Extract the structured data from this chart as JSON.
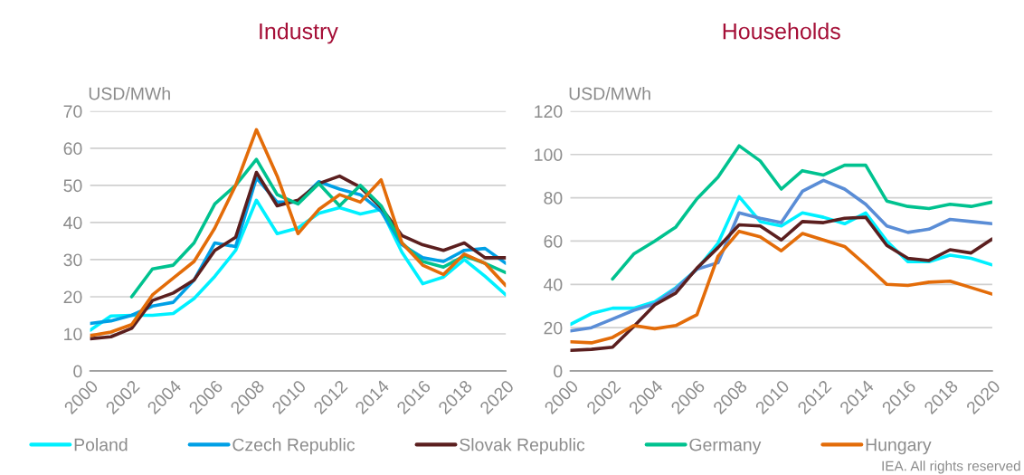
{
  "chart_data": [
    {
      "type": "line",
      "title": "Industry",
      "ylabel": "USD/MWh",
      "x": [
        2000,
        2001,
        2002,
        2003,
        2004,
        2005,
        2006,
        2007,
        2008,
        2009,
        2010,
        2011,
        2012,
        2013,
        2014,
        2015,
        2016,
        2017,
        2018,
        2019,
        2020
      ],
      "series": [
        {
          "name": "Poland",
          "color": "#00f0ff",
          "values": [
            11,
            14.8,
            15,
            15,
            15.5,
            19.5,
            25.5,
            32.5,
            46,
            37,
            38.5,
            42.5,
            44,
            42.3,
            43.5,
            32,
            23.5,
            25.3,
            30,
            25.5,
            20.5
          ]
        },
        {
          "name": "Czech Republic",
          "color": "#00a0e6",
          "values": [
            12.8,
            13.5,
            15,
            17.5,
            18.5,
            24.5,
            34.5,
            33.5,
            52,
            45.5,
            45.5,
            51,
            49,
            47.5,
            43,
            34,
            30.5,
            29.5,
            32.5,
            33,
            29
          ]
        },
        {
          "name": "Slovak Republic",
          "color": "#5b1f1f",
          "values": [
            8.7,
            9.2,
            11.5,
            19,
            21,
            24.5,
            32.5,
            36,
            53.5,
            44.5,
            46,
            50.5,
            52.5,
            49.5,
            44,
            36.5,
            34,
            32.5,
            34.5,
            30.5,
            30.5
          ]
        },
        {
          "name": "Germany",
          "color": "#00c28f",
          "values": [
            null,
            null,
            20,
            27.5,
            28.5,
            34.5,
            45,
            50,
            57,
            47.5,
            45,
            50.5,
            44.5,
            50,
            44.5,
            34.5,
            29.5,
            28,
            31,
            29,
            26.5
          ]
        },
        {
          "name": "Hungary",
          "color": "#e36c09",
          "values": [
            9.5,
            10.5,
            12.5,
            20.5,
            25,
            29.5,
            38.5,
            50,
            65,
            52.5,
            37,
            43.5,
            47.5,
            45.5,
            51.5,
            34.5,
            28.5,
            26,
            31.5,
            29,
            23
          ]
        }
      ],
      "xlim": [
        2000,
        2020
      ],
      "xticks": [
        2000,
        2002,
        2004,
        2006,
        2008,
        2010,
        2012,
        2014,
        2016,
        2018,
        2020
      ],
      "ylim": [
        0,
        70
      ],
      "yticks": [
        0,
        10,
        20,
        30,
        40,
        50,
        60,
        70
      ],
      "grid": "y",
      "legend": "bottom",
      "marker": "none",
      "line_style": "solid"
    },
    {
      "type": "line",
      "title": "Households",
      "ylabel": "USD/MWh",
      "x": [
        2000,
        2001,
        2002,
        2003,
        2004,
        2005,
        2006,
        2007,
        2008,
        2009,
        2010,
        2011,
        2012,
        2013,
        2014,
        2015,
        2016,
        2017,
        2018,
        2019,
        2020
      ],
      "series": [
        {
          "color": "#00f0ff",
          "values": [
            21.5,
            26.5,
            29,
            29,
            32,
            38.5,
            47,
            59,
            80.5,
            69,
            67,
            73,
            71,
            68,
            73,
            60,
            50.5,
            50.5,
            53.5,
            52,
            49
          ]
        },
        {
          "color": "#5a8dd6",
          "values": [
            18.5,
            20,
            24,
            28,
            31,
            38,
            47,
            50,
            73,
            70.5,
            68.5,
            83,
            88,
            84,
            77,
            67,
            64,
            65.5,
            70,
            69,
            68
          ]
        },
        {
          "color": "#5b1f1f",
          "values": [
            9.5,
            10,
            11,
            20.5,
            30.5,
            36,
            47.5,
            57,
            67.5,
            67,
            60.5,
            69,
            68.5,
            70.5,
            71,
            58,
            52,
            51,
            56,
            54.5,
            61
          ]
        },
        {
          "color": "#00c28f",
          "values": [
            null,
            null,
            42.5,
            54,
            60,
            66.5,
            79.5,
            89.5,
            104,
            97,
            84,
            92.5,
            90.5,
            95,
            95,
            78.5,
            76,
            75,
            77,
            76,
            78
          ]
        },
        {
          "color": "#e36c09",
          "values": [
            13.5,
            13,
            15.5,
            21,
            19.5,
            21,
            26,
            53,
            64.5,
            62,
            55.5,
            63.5,
            60.5,
            57.5,
            49,
            40,
            39.5,
            41,
            41.5,
            38.5,
            35.5
          ]
        }
      ],
      "xlim": [
        2000,
        2020
      ],
      "xticks": [
        2000,
        2002,
        2004,
        2006,
        2008,
        2010,
        2012,
        2014,
        2016,
        2018,
        2020
      ],
      "ylim": [
        0,
        120
      ],
      "yticks": [
        0,
        20,
        40,
        60,
        80,
        100,
        120
      ],
      "grid": "y",
      "marker": "none",
      "line_style": "solid",
      "annotations": [
        "IEA. All rights reserved"
      ]
    }
  ]
}
